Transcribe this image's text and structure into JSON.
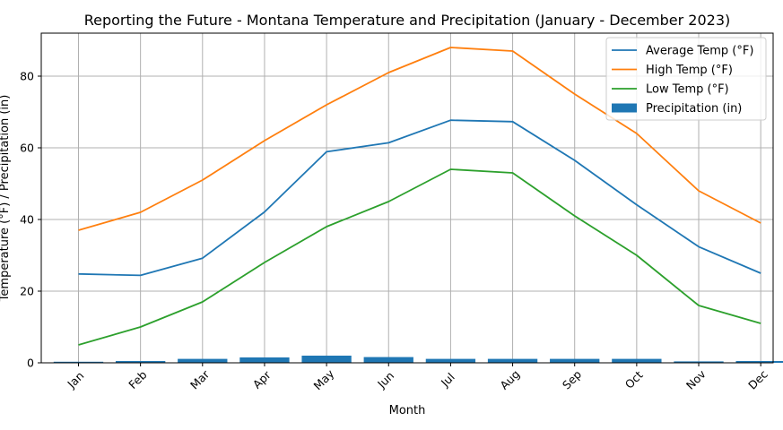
{
  "chart_data": {
    "type": "line",
    "title": "Reporting the Future - Montana Temperature and Precipitation (January - December 2023)",
    "xlabel": "Month",
    "ylabel": "Temperature (°F) / Precipitation (in)",
    "categories": [
      "Jan",
      "Feb",
      "Mar",
      "Apr",
      "May",
      "Jun",
      "Jul",
      "Aug",
      "Sep",
      "Oct",
      "Nov",
      "Dec"
    ],
    "ylim": [
      0,
      92
    ],
    "yticks": [
      0,
      20,
      40,
      60,
      80
    ],
    "grid": true,
    "legend_position": "top-right",
    "series": [
      {
        "name": "Average Temp (°F)",
        "kind": "line",
        "color": "#1f77b4",
        "values": [
          24.8,
          24.4,
          29.2,
          42.1,
          58.9,
          61.4,
          67.7,
          67.3,
          56.5,
          44.1,
          32.4,
          25.0
        ]
      },
      {
        "name": "High Temp (°F)",
        "kind": "line",
        "color": "#ff7f0e",
        "values": [
          37,
          42,
          51,
          62,
          72,
          81,
          88,
          87,
          75,
          64,
          48,
          39
        ]
      },
      {
        "name": "Low Temp (°F)",
        "kind": "line",
        "color": "#2ca02c",
        "values": [
          5,
          10,
          17,
          28,
          38,
          45,
          54,
          53,
          41,
          30,
          16,
          11
        ]
      },
      {
        "name": "Precipitation (in)",
        "kind": "bar",
        "color": "#1f77b4",
        "values": [
          0.3,
          0.5,
          1.1,
          1.5,
          2.0,
          1.6,
          1.1,
          1.1,
          1.1,
          1.1,
          0.4,
          0.5
        ]
      }
    ]
  }
}
